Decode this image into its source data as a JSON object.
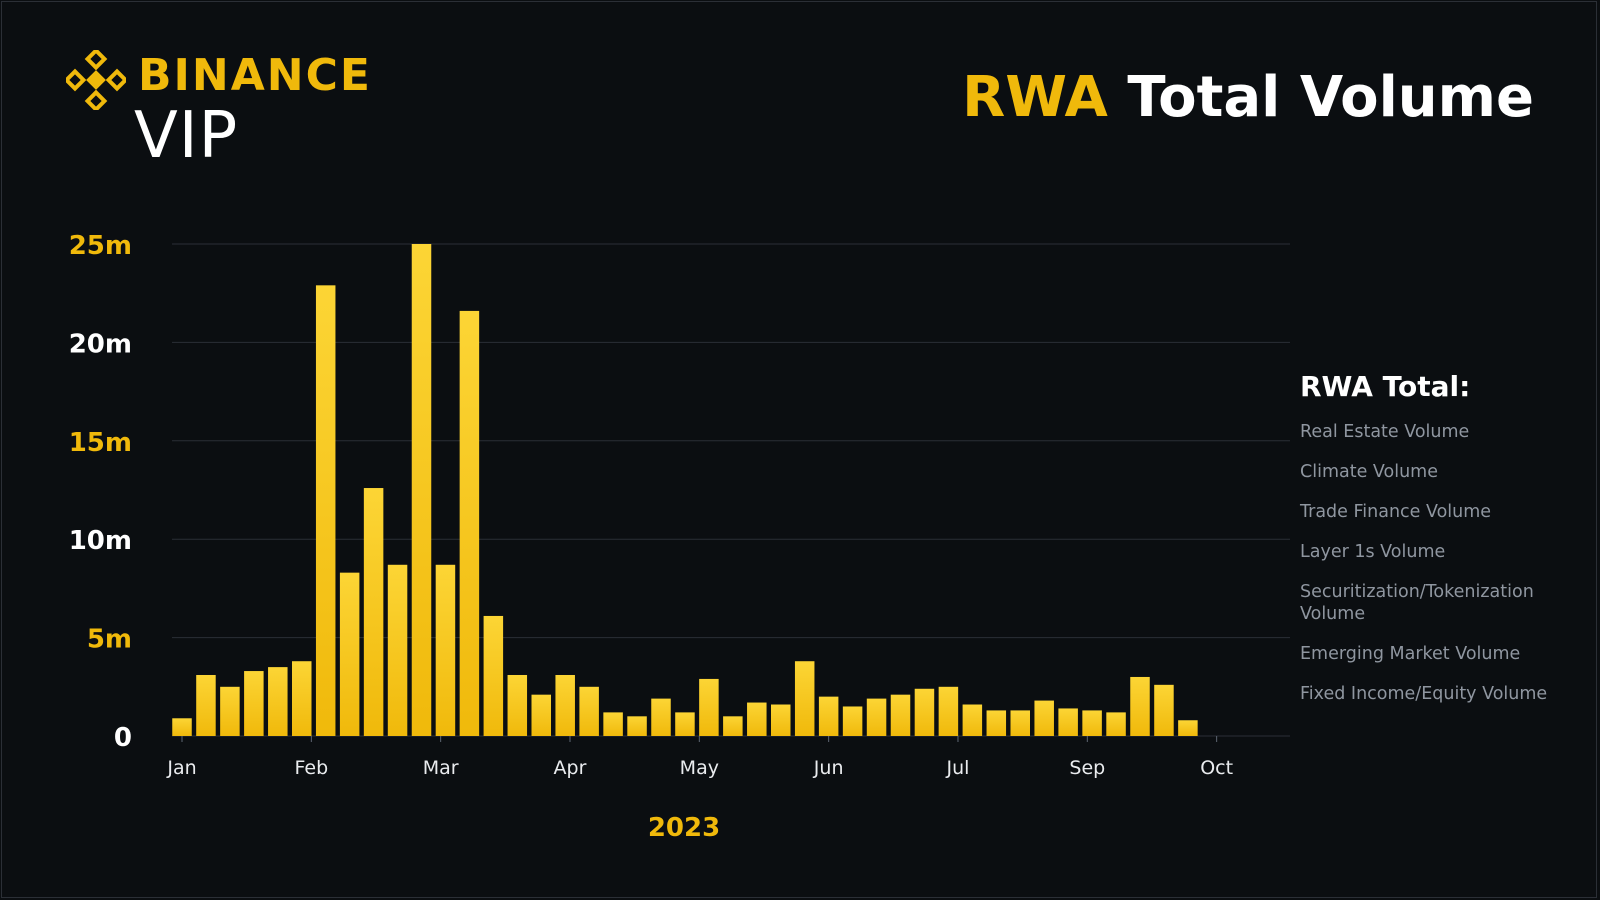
{
  "brand": {
    "name": "BINANCE",
    "sub": "VIP",
    "color": "#f0b90b"
  },
  "title": {
    "highlight": "RWA",
    "rest": "Total Volume"
  },
  "legend": {
    "title": "RWA Total:",
    "items": [
      "Real Estate Volume",
      "Climate Volume",
      "Trade Finance Volume",
      "Layer 1s Volume",
      "Securitization/Tokenization Volume",
      "Emerging Market Volume",
      "Fixed Income/Equity Volume"
    ]
  },
  "chart_data": {
    "type": "bar",
    "title": "RWA Total Volume",
    "xlabel": "2023",
    "ylabel": "",
    "ylim": [
      0,
      25000000
    ],
    "yticks": [
      {
        "value": 0,
        "label": "0",
        "color": "#ffffff"
      },
      {
        "value": 5000000,
        "label": "5m",
        "color": "#f0b90b"
      },
      {
        "value": 10000000,
        "label": "10m",
        "color": "#ffffff"
      },
      {
        "value": 15000000,
        "label": "15m",
        "color": "#f0b90b"
      },
      {
        "value": 20000000,
        "label": "20m",
        "color": "#ffffff"
      },
      {
        "value": 25000000,
        "label": "25m",
        "color": "#f0b90b"
      }
    ],
    "xticks": [
      {
        "label": "Jan",
        "index": 0
      },
      {
        "label": "Feb",
        "index": 5.4
      },
      {
        "label": "Mar",
        "index": 10.8
      },
      {
        "label": "Apr",
        "index": 16.2
      },
      {
        "label": "May",
        "index": 21.6
      },
      {
        "label": "Jun",
        "index": 27
      },
      {
        "label": "Jul",
        "index": 32.4
      },
      {
        "label": "Sep",
        "index": 37.8
      },
      {
        "label": "Oct",
        "index": 43.2
      }
    ],
    "series": [
      {
        "name": "RWA Total",
        "values": [
          900000,
          3100000,
          2500000,
          3300000,
          3500000,
          3800000,
          22900000,
          8300000,
          12600000,
          8700000,
          25000000,
          8700000,
          21600000,
          6100000,
          3100000,
          2100000,
          3100000,
          2500000,
          1200000,
          1000000,
          1900000,
          1200000,
          2900000,
          1000000,
          1700000,
          1600000,
          3800000,
          2000000,
          1500000,
          1900000,
          2100000,
          2400000,
          2500000,
          1600000,
          1300000,
          1300000,
          1800000,
          1400000,
          1300000,
          1200000,
          3000000,
          2600000,
          800000
        ]
      }
    ],
    "grid": true,
    "bar_color_top": "#fcd535",
    "bar_color_bottom": "#f0b90b",
    "axis_label_color": "#f0b90b",
    "grid_color": "#2b2f36"
  }
}
